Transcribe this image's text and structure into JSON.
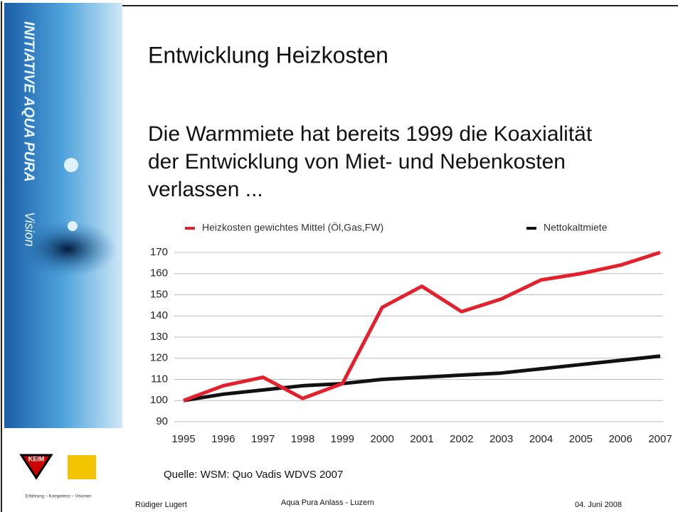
{
  "sidebar": {
    "title": "INITIATIVE AQUA PURA",
    "subtitle": "Vision",
    "logo": "KEIM",
    "tagline": "Erfahrung – Kompetenz – Visionen"
  },
  "slide": {
    "title": "Entwicklung Heizkosten",
    "body": [
      "Die Warmmiete hat bereits 1999 die Koaxialität",
      "der Entwicklung von Miet- und Nebenkosten",
      "verlassen ..."
    ],
    "source": "Quelle: WSM: Quo Vadis WDVS 2007"
  },
  "footer": {
    "author": "Rüdiger Lugert",
    "event": "Aqua Pura Anlass - Luzern",
    "date": "04. Juni 2008"
  },
  "chart_data": {
    "type": "line",
    "categories": [
      "1995",
      "1996",
      "1997",
      "1998",
      "1999",
      "2000",
      "2001",
      "2002",
      "2003",
      "2004",
      "2005",
      "2006",
      "2007"
    ],
    "series": [
      {
        "name": "Heizkosten gewichtes Mittel (Öl,Gas,FW)",
        "color": "#e3202b",
        "values": [
          100,
          107,
          111,
          101,
          108,
          144,
          154,
          142,
          148,
          157,
          160,
          164,
          170
        ]
      },
      {
        "name": "Nettokaltmiete",
        "color": "#111111",
        "values": [
          100,
          103,
          105,
          107,
          108,
          110,
          111,
          112,
          113,
          115,
          117,
          119,
          121
        ]
      }
    ],
    "ylim": [
      90,
      170
    ],
    "yticks": [
      90,
      100,
      110,
      120,
      130,
      140,
      150,
      160,
      170
    ],
    "grid": true,
    "legend": "top"
  }
}
